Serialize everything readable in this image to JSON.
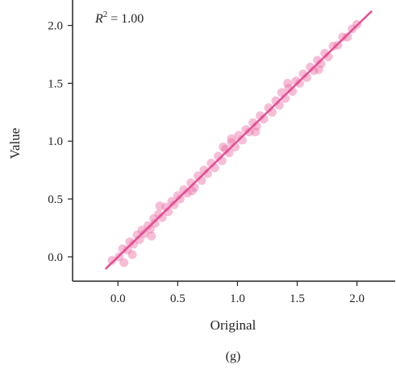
{
  "chart_data": {
    "type": "scatter",
    "caption": "(g)",
    "xlabel": "Original",
    "ylabel": "Value",
    "annotation": {
      "symbol": "R",
      "superscript": "2",
      "text": " = 1.00"
    },
    "xlim": [
      -0.38,
      2.32
    ],
    "ylim": [
      -0.21,
      2.22
    ],
    "x_ticks": [
      0.0,
      0.5,
      1.0,
      1.5,
      2.0
    ],
    "x_tick_labels": [
      "0.0",
      "0.5",
      "1.0",
      "1.5",
      "2.0"
    ],
    "y_ticks": [
      0.0,
      0.5,
      1.0,
      1.5,
      2.0
    ],
    "y_tick_labels": [
      "0.0",
      "0.5",
      "1.0",
      "1.5",
      "2.0"
    ],
    "grid": false,
    "colors": {
      "points": "#ec6fa4",
      "fit_line": "#e24d92",
      "axis": "#222222"
    },
    "fit_line": {
      "x": [
        -0.1,
        2.12
      ],
      "y": [
        -0.1,
        2.12
      ]
    },
    "points": {
      "x": [
        -0.05,
        0.01,
        0.04,
        0.08,
        0.1,
        0.13,
        0.16,
        0.18,
        0.2,
        0.22,
        0.25,
        0.27,
        0.3,
        0.31,
        0.34,
        0.37,
        0.4,
        0.42,
        0.45,
        0.47,
        0.5,
        0.52,
        0.55,
        0.58,
        0.61,
        0.64,
        0.67,
        0.7,
        0.72,
        0.75,
        0.78,
        0.81,
        0.84,
        0.87,
        0.9,
        0.93,
        0.95,
        0.98,
        1.01,
        1.04,
        1.07,
        1.1,
        1.13,
        1.16,
        1.19,
        1.22,
        1.26,
        1.29,
        1.32,
        1.35,
        1.37,
        1.4,
        1.43,
        1.46,
        1.49,
        1.52,
        1.55,
        1.58,
        1.61,
        1.64,
        1.67,
        1.7,
        1.73,
        1.76,
        1.8,
        1.84,
        1.88,
        1.92,
        1.96,
        2.0,
        0.12,
        0.35,
        0.62,
        0.88,
        1.15,
        1.42,
        1.68,
        0.05,
        0.28,
        0.95
      ],
      "y": [
        -0.03,
        0.0,
        0.07,
        0.06,
        0.13,
        0.11,
        0.19,
        0.15,
        0.23,
        0.2,
        0.27,
        0.24,
        0.33,
        0.29,
        0.37,
        0.34,
        0.43,
        0.39,
        0.48,
        0.45,
        0.53,
        0.5,
        0.58,
        0.55,
        0.64,
        0.6,
        0.7,
        0.66,
        0.75,
        0.72,
        0.81,
        0.77,
        0.87,
        0.83,
        0.93,
        0.9,
        0.99,
        0.95,
        1.05,
        1.01,
        1.1,
        1.08,
        1.16,
        1.13,
        1.22,
        1.19,
        1.29,
        1.25,
        1.35,
        1.31,
        1.42,
        1.37,
        1.46,
        1.43,
        1.52,
        1.5,
        1.58,
        1.55,
        1.64,
        1.61,
        1.7,
        1.67,
        1.76,
        1.73,
        1.82,
        1.83,
        1.9,
        1.9,
        1.97,
        2.01,
        0.02,
        0.44,
        0.57,
        0.95,
        1.08,
        1.5,
        1.62,
        -0.05,
        0.18,
        1.02
      ]
    }
  }
}
